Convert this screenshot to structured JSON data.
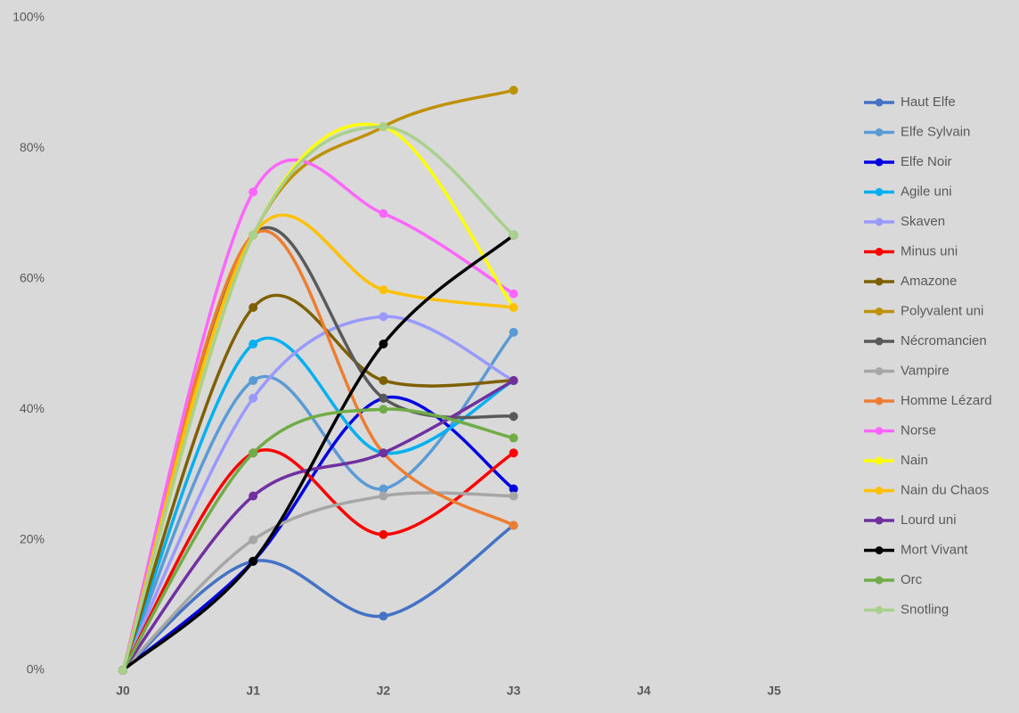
{
  "chart_data": {
    "type": "line",
    "smooth": true,
    "categories": [
      "J0",
      "J1",
      "J2",
      "J3",
      "J4",
      "J5"
    ],
    "ylim": [
      0,
      100
    ],
    "yticks": [
      {
        "value": 0,
        "label": "0%"
      },
      {
        "value": 20,
        "label": "20%"
      },
      {
        "value": 40,
        "label": "40%"
      },
      {
        "value": 60,
        "label": "60%"
      },
      {
        "value": 80,
        "label": "80%"
      },
      {
        "value": 100,
        "label": "100%"
      }
    ],
    "grid": false,
    "legend": "right",
    "series": [
      {
        "name": "Haut Elfe",
        "color": "#4472c4",
        "values": [
          0,
          16.7,
          8.3,
          22.2,
          null,
          null
        ]
      },
      {
        "name": "Elfe Sylvain",
        "color": "#5b9bd5",
        "values": [
          0,
          44.4,
          27.8,
          51.8,
          null,
          null
        ]
      },
      {
        "name": "Elfe Noir",
        "color": "#0000e0",
        "values": [
          0,
          16.7,
          41.7,
          27.8,
          null,
          null
        ]
      },
      {
        "name": "Agile uni",
        "color": "#00b0f0",
        "values": [
          0,
          50,
          33.3,
          44.4,
          null,
          null
        ]
      },
      {
        "name": "Skaven",
        "color": "#9999ff",
        "values": [
          0,
          41.7,
          54.2,
          44.4,
          null,
          null
        ]
      },
      {
        "name": "Minus uni",
        "color": "#ff0000",
        "values": [
          0,
          33.3,
          20.8,
          33.3,
          null,
          null
        ]
      },
      {
        "name": "Amazone",
        "color": "#7f6000",
        "values": [
          0,
          55.6,
          44.4,
          44.4,
          null,
          null
        ]
      },
      {
        "name": "Polyvalent uni",
        "color": "#bf9000",
        "values": [
          0,
          66.7,
          83.3,
          88.9,
          null,
          null
        ]
      },
      {
        "name": "Nécromancien",
        "color": "#595959",
        "values": [
          0,
          66.7,
          41.7,
          38.9,
          null,
          null
        ]
      },
      {
        "name": "Vampire",
        "color": "#a6a6a6",
        "values": [
          0,
          20,
          26.7,
          26.7,
          null,
          null
        ]
      },
      {
        "name": "Homme Lézard",
        "color": "#ed7d31",
        "values": [
          0,
          66.7,
          33.3,
          22.2,
          null,
          null
        ]
      },
      {
        "name": "Norse",
        "color": "#ff66ff",
        "values": [
          0,
          73.3,
          70,
          57.7,
          null,
          null
        ]
      },
      {
        "name": "Nain",
        "color": "#ffff00",
        "values": [
          0,
          66.7,
          83.3,
          55.6,
          null,
          null
        ]
      },
      {
        "name": "Nain du Chaos",
        "color": "#ffc000",
        "values": [
          0,
          66.7,
          58.3,
          55.6,
          null,
          null
        ]
      },
      {
        "name": "Lourd uni",
        "color": "#7030a0",
        "values": [
          0,
          26.7,
          33.3,
          44.4,
          null,
          null
        ]
      },
      {
        "name": "Mort Vivant",
        "color": "#000000",
        "values": [
          0,
          16.7,
          50,
          66.7,
          null,
          null
        ]
      },
      {
        "name": "Orc",
        "color": "#70ad47",
        "values": [
          0,
          33.3,
          40,
          35.6,
          null,
          null
        ]
      },
      {
        "name": "Snotling",
        "color": "#a9d18e",
        "values": [
          0,
          66.7,
          83.3,
          66.7,
          null,
          null
        ]
      }
    ]
  }
}
